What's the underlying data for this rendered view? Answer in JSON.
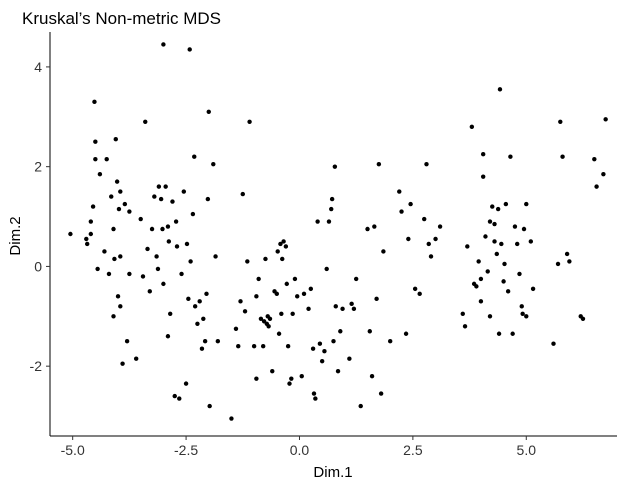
{
  "chart_data": {
    "type": "scatter",
    "title": "Kruskal’s Non-metric MDS",
    "xlabel": "Dim.1",
    "ylabel": "Dim.2",
    "xlim": [
      -5.5,
      7.0
    ],
    "ylim": [
      -3.4,
      4.7
    ],
    "x_ticks": [
      -5.0,
      -2.5,
      0.0,
      2.5,
      5.0
    ],
    "x_tick_labels": [
      "-5.0",
      "-2.5",
      "0.0",
      "2.5",
      "5.0"
    ],
    "y_ticks": [
      -2,
      0,
      2,
      4
    ],
    "y_tick_labels": [
      "-2",
      "0",
      "2",
      "4"
    ],
    "grid": false,
    "legend": "none",
    "point_color": "#000000",
    "points": [
      [
        -5.05,
        0.65
      ],
      [
        -4.7,
        0.55
      ],
      [
        -4.68,
        0.45
      ],
      [
        -4.6,
        0.65
      ],
      [
        -4.6,
        0.9
      ],
      [
        -4.55,
        1.2
      ],
      [
        -4.52,
        3.3
      ],
      [
        -4.5,
        2.5
      ],
      [
        -4.5,
        2.15
      ],
      [
        -4.45,
        -0.05
      ],
      [
        -4.4,
        1.85
      ],
      [
        -4.3,
        0.3
      ],
      [
        -4.25,
        2.15
      ],
      [
        -4.2,
        -0.15
      ],
      [
        -4.15,
        1.4
      ],
      [
        -4.1,
        -1.0
      ],
      [
        -4.1,
        0.75
      ],
      [
        -4.08,
        0.15
      ],
      [
        -4.05,
        2.55
      ],
      [
        -4.02,
        1.7
      ],
      [
        -4.0,
        -0.6
      ],
      [
        -3.98,
        1.15
      ],
      [
        -3.95,
        -0.8
      ],
      [
        -3.95,
        0.2
      ],
      [
        -3.95,
        1.5
      ],
      [
        -3.9,
        -1.95
      ],
      [
        -3.85,
        1.25
      ],
      [
        -3.8,
        -1.5
      ],
      [
        -3.75,
        -0.15
      ],
      [
        -3.75,
        1.1
      ],
      [
        -3.6,
        -1.85
      ],
      [
        -3.5,
        0.95
      ],
      [
        -3.45,
        -0.2
      ],
      [
        -3.4,
        2.9
      ],
      [
        -3.35,
        0.35
      ],
      [
        -3.3,
        -0.5
      ],
      [
        -3.25,
        0.75
      ],
      [
        -3.2,
        1.4
      ],
      [
        -3.15,
        0.2
      ],
      [
        -3.12,
        -0.05
      ],
      [
        -3.1,
        1.6
      ],
      [
        -3.05,
        1.35
      ],
      [
        -3.02,
        0.75
      ],
      [
        -3.0,
        4.45
      ],
      [
        -3.0,
        -0.35
      ],
      [
        -2.95,
        1.6
      ],
      [
        -2.9,
        0.8
      ],
      [
        -2.9,
        -1.4
      ],
      [
        -2.88,
        0.5
      ],
      [
        -2.85,
        -0.95
      ],
      [
        -2.8,
        1.3
      ],
      [
        -2.75,
        -2.6
      ],
      [
        -2.72,
        0.9
      ],
      [
        -2.7,
        0.4
      ],
      [
        -2.65,
        -2.65
      ],
      [
        -2.6,
        -0.15
      ],
      [
        -2.55,
        1.5
      ],
      [
        -2.5,
        -2.35
      ],
      [
        -2.48,
        0.45
      ],
      [
        -2.45,
        -0.65
      ],
      [
        -2.42,
        4.35
      ],
      [
        -2.4,
        0.1
      ],
      [
        -2.35,
        1.05
      ],
      [
        -2.32,
        2.2
      ],
      [
        -2.3,
        -0.8
      ],
      [
        -2.25,
        -1.15
      ],
      [
        -2.2,
        -0.7
      ],
      [
        -2.15,
        -1.65
      ],
      [
        -2.12,
        -1.05
      ],
      [
        -2.08,
        -1.5
      ],
      [
        -2.05,
        -0.55
      ],
      [
        -2.02,
        1.35
      ],
      [
        -2.0,
        3.1
      ],
      [
        -1.98,
        -2.8
      ],
      [
        -1.9,
        2.05
      ],
      [
        -1.85,
        0.2
      ],
      [
        -1.8,
        -1.5
      ],
      [
        -1.5,
        -3.05
      ],
      [
        -1.4,
        -1.25
      ],
      [
        -1.35,
        -1.6
      ],
      [
        -1.3,
        -0.7
      ],
      [
        -1.25,
        1.45
      ],
      [
        -1.2,
        -0.9
      ],
      [
        -1.15,
        0.1
      ],
      [
        -1.1,
        2.9
      ],
      [
        -1.0,
        -1.6
      ],
      [
        -0.95,
        -2.25
      ],
      [
        -0.95,
        -0.6
      ],
      [
        -0.9,
        -0.25
      ],
      [
        -0.85,
        -1.05
      ],
      [
        -0.8,
        -1.6
      ],
      [
        -0.78,
        -1.1
      ],
      [
        -0.75,
        0.15
      ],
      [
        -0.72,
        -1.15
      ],
      [
        -0.7,
        -1.0
      ],
      [
        -0.68,
        -1.2
      ],
      [
        -0.65,
        -1.05
      ],
      [
        -0.6,
        -2.1
      ],
      [
        -0.55,
        -0.5
      ],
      [
        -0.5,
        -0.55
      ],
      [
        -0.48,
        0.3
      ],
      [
        -0.45,
        -1.35
      ],
      [
        -0.42,
        0.45
      ],
      [
        -0.4,
        -0.95
      ],
      [
        -0.38,
        0.15
      ],
      [
        -0.35,
        0.5
      ],
      [
        -0.3,
        0.4
      ],
      [
        -0.28,
        -0.35
      ],
      [
        -0.25,
        -1.6
      ],
      [
        -0.22,
        -2.35
      ],
      [
        -0.18,
        -2.25
      ],
      [
        -0.15,
        -0.95
      ],
      [
        -0.1,
        -0.25
      ],
      [
        -0.05,
        -0.6
      ],
      [
        0.05,
        -2.2
      ],
      [
        0.1,
        -0.55
      ],
      [
        0.2,
        -0.85
      ],
      [
        0.25,
        -0.45
      ],
      [
        0.3,
        -1.65
      ],
      [
        0.32,
        -2.55
      ],
      [
        0.35,
        -2.65
      ],
      [
        0.4,
        0.9
      ],
      [
        0.45,
        -1.55
      ],
      [
        0.5,
        -1.9
      ],
      [
        0.55,
        -1.7
      ],
      [
        0.6,
        -0.05
      ],
      [
        0.65,
        0.9
      ],
      [
        0.7,
        1.15
      ],
      [
        0.72,
        1.35
      ],
      [
        0.75,
        -1.5
      ],
      [
        0.78,
        2.0
      ],
      [
        0.8,
        -0.8
      ],
      [
        0.85,
        -2.1
      ],
      [
        0.9,
        -1.3
      ],
      [
        0.95,
        -0.85
      ],
      [
        1.1,
        -1.85
      ],
      [
        1.15,
        -0.75
      ],
      [
        1.2,
        -0.85
      ],
      [
        1.25,
        -0.25
      ],
      [
        1.35,
        -2.8
      ],
      [
        1.5,
        0.75
      ],
      [
        1.55,
        -1.3
      ],
      [
        1.6,
        -2.2
      ],
      [
        1.65,
        0.8
      ],
      [
        1.7,
        -0.65
      ],
      [
        1.75,
        2.05
      ],
      [
        1.8,
        -2.55
      ],
      [
        1.85,
        0.3
      ],
      [
        2.0,
        -1.5
      ],
      [
        2.2,
        1.5
      ],
      [
        2.25,
        1.1
      ],
      [
        2.35,
        -1.35
      ],
      [
        2.4,
        0.55
      ],
      [
        2.45,
        1.25
      ],
      [
        2.55,
        -0.45
      ],
      [
        2.65,
        -0.55
      ],
      [
        2.75,
        0.95
      ],
      [
        2.8,
        2.05
      ],
      [
        2.85,
        0.45
      ],
      [
        2.9,
        0.2
      ],
      [
        3.0,
        0.55
      ],
      [
        3.1,
        0.8
      ],
      [
        3.6,
        -0.95
      ],
      [
        3.65,
        -1.2
      ],
      [
        3.7,
        0.4
      ],
      [
        3.8,
        2.8
      ],
      [
        3.85,
        -0.35
      ],
      [
        3.9,
        -0.4
      ],
      [
        3.95,
        0.1
      ],
      [
        4.0,
        -0.25
      ],
      [
        4.0,
        -0.7
      ],
      [
        4.05,
        1.8
      ],
      [
        4.05,
        2.25
      ],
      [
        4.1,
        0.6
      ],
      [
        4.15,
        -0.1
      ],
      [
        4.2,
        0.9
      ],
      [
        4.2,
        -1.0
      ],
      [
        4.25,
        1.2
      ],
      [
        4.3,
        0.85
      ],
      [
        4.3,
        0.5
      ],
      [
        4.35,
        0.25
      ],
      [
        4.38,
        1.15
      ],
      [
        4.4,
        -1.35
      ],
      [
        4.42,
        3.55
      ],
      [
        4.45,
        0.45
      ],
      [
        4.5,
        -0.3
      ],
      [
        4.52,
        0.05
      ],
      [
        4.55,
        1.25
      ],
      [
        4.6,
        -0.5
      ],
      [
        4.65,
        2.2
      ],
      [
        4.7,
        -1.35
      ],
      [
        4.75,
        0.8
      ],
      [
        4.8,
        0.45
      ],
      [
        4.85,
        -0.15
      ],
      [
        4.9,
        -0.8
      ],
      [
        4.92,
        -0.95
      ],
      [
        4.95,
        0.75
      ],
      [
        5.0,
        -1.0
      ],
      [
        5.0,
        1.25
      ],
      [
        5.1,
        0.5
      ],
      [
        5.15,
        -0.45
      ],
      [
        5.6,
        -1.55
      ],
      [
        5.7,
        0.05
      ],
      [
        5.75,
        2.9
      ],
      [
        5.8,
        2.2
      ],
      [
        5.9,
        0.25
      ],
      [
        5.95,
        0.1
      ],
      [
        6.2,
        -1.0
      ],
      [
        6.25,
        -1.05
      ],
      [
        6.5,
        2.15
      ],
      [
        6.55,
        1.6
      ],
      [
        6.7,
        1.85
      ],
      [
        6.75,
        2.95
      ]
    ]
  }
}
